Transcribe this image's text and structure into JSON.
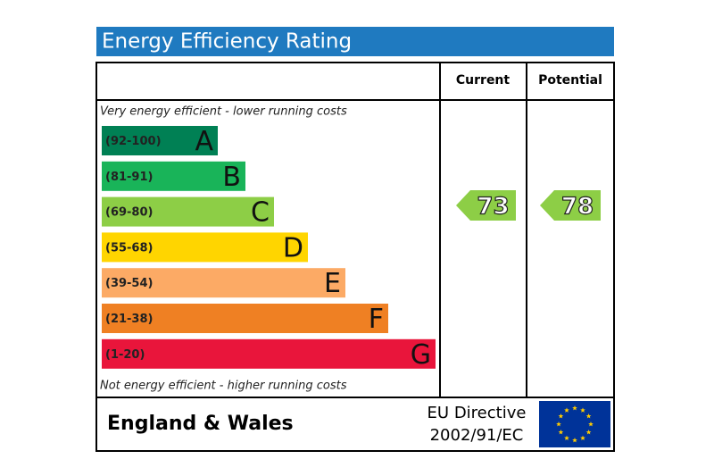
{
  "title": "Energy Efficiency Rating",
  "columns": {
    "current": "Current",
    "potential": "Potential"
  },
  "top_note": "Very energy efficient - lower running costs",
  "bottom_note": "Not energy efficient - higher running costs",
  "bands": [
    {
      "range": "(92-100)",
      "letter": "A",
      "color": "#008054"
    },
    {
      "range": "(81-91)",
      "letter": "B",
      "color": "#19b459"
    },
    {
      "range": "(69-80)",
      "letter": "C",
      "color": "#8dce46"
    },
    {
      "range": "(55-68)",
      "letter": "D",
      "color": "#ffd500"
    },
    {
      "range": "(39-54)",
      "letter": "E",
      "color": "#fcaa65"
    },
    {
      "range": "(21-38)",
      "letter": "F",
      "color": "#ef8023"
    },
    {
      "range": "(1-20)",
      "letter": "G",
      "color": "#e9153b"
    }
  ],
  "current": {
    "value": 73,
    "color": "#8dce46"
  },
  "potential": {
    "value": 78,
    "color": "#8dce46"
  },
  "footer": {
    "region": "England & Wales",
    "directive": [
      "EU Directive",
      "2002/91/EC"
    ]
  }
}
